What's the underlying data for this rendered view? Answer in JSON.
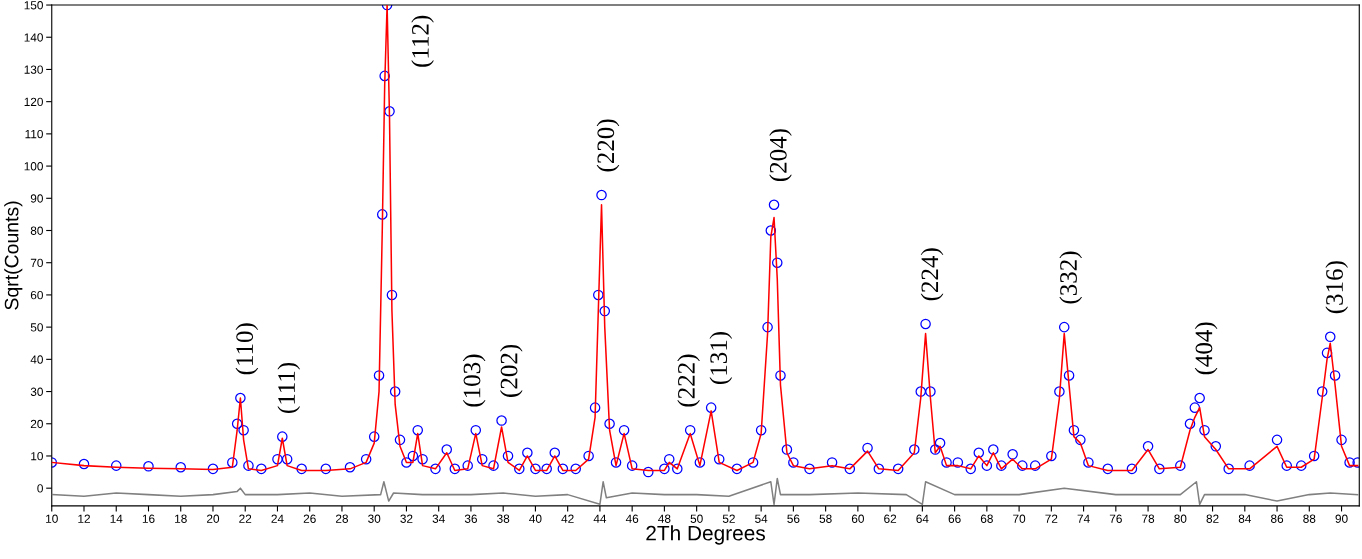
{
  "chart_data": {
    "type": "line",
    "xlabel": "2Th Degrees",
    "ylabel": "Sqrt(Counts)",
    "xlim": [
      10,
      91.1
    ],
    "ylim": [
      -5.5,
      150
    ],
    "xticks": [
      10,
      12,
      14,
      16,
      18,
      20,
      22,
      24,
      26,
      28,
      30,
      32,
      34,
      36,
      38,
      40,
      42,
      44,
      46,
      48,
      50,
      52,
      54,
      56,
      58,
      60,
      62,
      64,
      66,
      68,
      70,
      72,
      74,
      76,
      78,
      80,
      82,
      84,
      86,
      88,
      90
    ],
    "yticks": [
      0,
      10,
      20,
      30,
      40,
      50,
      60,
      70,
      80,
      90,
      100,
      110,
      120,
      130,
      140,
      150
    ],
    "x": [
      10,
      12,
      14,
      16,
      18,
      20,
      21.2,
      21.5,
      21.7,
      21.9,
      22.2,
      23,
      24.0,
      24.3,
      24.6,
      25.5,
      27,
      28.5,
      29.5,
      30.0,
      30.3,
      30.5,
      30.65,
      30.8,
      30.95,
      31.1,
      31.3,
      31.6,
      32.0,
      32.4,
      32.7,
      33.0,
      33.8,
      34.5,
      35.0,
      35.8,
      36.3,
      36.7,
      37.4,
      37.9,
      38.3,
      39.0,
      39.5,
      40.0,
      40.7,
      41.2,
      41.7,
      42.5,
      43.3,
      43.7,
      43.9,
      44.1,
      44.3,
      44.6,
      45.0,
      45.5,
      46.0,
      47.0,
      48.0,
      48.3,
      48.8,
      49.6,
      50.2,
      50.9,
      51.4,
      52.5,
      53.5,
      54.0,
      54.4,
      54.6,
      54.8,
      55.0,
      55.2,
      55.6,
      56.0,
      57.0,
      58.4,
      59.5,
      60.6,
      61.3,
      62.5,
      63.5,
      63.9,
      64.2,
      64.5,
      64.8,
      65.1,
      65.5,
      66.2,
      67.0,
      67.5,
      68.0,
      68.4,
      68.9,
      69.6,
      70.2,
      71.0,
      72.0,
      72.5,
      72.8,
      73.1,
      73.4,
      73.8,
      74.3,
      75.5,
      77.0,
      78.0,
      78.7,
      80.0,
      80.6,
      80.9,
      81.2,
      81.5,
      82.2,
      83.0,
      84.3,
      86.0,
      86.6,
      87.5,
      88.3,
      88.8,
      89.1,
      89.3,
      89.6,
      90.0,
      90.5,
      91.0
    ],
    "series": [
      {
        "type": "scatter",
        "marker": "circle",
        "color": "#0000ff",
        "values": [
          8,
          7.5,
          7,
          6.8,
          6.5,
          6,
          8,
          20,
          28,
          18,
          7,
          6,
          9,
          16,
          9,
          6,
          6,
          6.5,
          9,
          16,
          35,
          85,
          128,
          150,
          117,
          60,
          30,
          15,
          8,
          10,
          18,
          9,
          6,
          12,
          6,
          7,
          18,
          9,
          7,
          21,
          10,
          6,
          11,
          6,
          6,
          11,
          6,
          6,
          10,
          25,
          60,
          91,
          55,
          20,
          8,
          18,
          7,
          5,
          6,
          9,
          6,
          18,
          8,
          25,
          9,
          6,
          8,
          18,
          50,
          80,
          88,
          70,
          35,
          12,
          8,
          6,
          8,
          6,
          12.5,
          6,
          6,
          12,
          30,
          51,
          30,
          12,
          14,
          8,
          8,
          6,
          11,
          7,
          12,
          7,
          10.5,
          7,
          7,
          10,
          30,
          50,
          35,
          18,
          15,
          8,
          6,
          6,
          13,
          6,
          7,
          20,
          25,
          28,
          18,
          13,
          6,
          7,
          15,
          7,
          7,
          10,
          30,
          42,
          47,
          35,
          15,
          8,
          8
        ]
      },
      {
        "line_style": "solid",
        "color": "#ff0000",
        "values": [
          8,
          7,
          6.5,
          6.2,
          6,
          5.8,
          6.5,
          18,
          28,
          15,
          6,
          5.5,
          7,
          15.5,
          7,
          5.5,
          5.5,
          6,
          8,
          14,
          30,
          80,
          125,
          150,
          115,
          55,
          26,
          13,
          8,
          8,
          17,
          7,
          6,
          11,
          5.5,
          6,
          17,
          7,
          6,
          19,
          8,
          5.5,
          10,
          5.5,
          5.5,
          10,
          5.5,
          5.5,
          9,
          22,
          55,
          88,
          50,
          18,
          7,
          17,
          6,
          5.5,
          5.5,
          8,
          6,
          17,
          7,
          24,
          8,
          5.5,
          8,
          17,
          48,
          78,
          84,
          65,
          32,
          11,
          7,
          6,
          7,
          6,
          11.5,
          6,
          5.5,
          11,
          28,
          48,
          28,
          11,
          13,
          7,
          7,
          6,
          10,
          7,
          11,
          6,
          9,
          6,
          6,
          9,
          28,
          48,
          32,
          16,
          14,
          7,
          5.5,
          5.5,
          12,
          6,
          6.5,
          18,
          22,
          25,
          16,
          12,
          6,
          6,
          13,
          6.5,
          6.5,
          9,
          28,
          40,
          45,
          32,
          13,
          7,
          7
        ]
      },
      {
        "type": "line",
        "line_style": "solid",
        "color": "#808080",
        "x": [
          10,
          12,
          14,
          16,
          18,
          20,
          21.5,
          21.7,
          22,
          24,
          26,
          28,
          30.4,
          30.6,
          30.9,
          31.2,
          33,
          36,
          38,
          40,
          42,
          44.0,
          44.2,
          44.4,
          46,
          48,
          50,
          52,
          54.6,
          54.8,
          55.0,
          55.2,
          57,
          60,
          63,
          64.0,
          64.2,
          66,
          70,
          72.8,
          76,
          80,
          81.0,
          81.2,
          81.5,
          84,
          86.0,
          88,
          89.3,
          91
        ],
        "values": [
          -2,
          -2.5,
          -1.5,
          -2,
          -2.5,
          -2,
          -1,
          0,
          -2,
          -2,
          -1.5,
          -2.5,
          -2,
          2,
          -4,
          -1.5,
          -2,
          -2,
          -1.5,
          -2.5,
          -2,
          -5,
          2,
          -3,
          -1.5,
          -2,
          -2,
          -2.5,
          2,
          -5,
          3,
          -2,
          -2,
          -1.5,
          -2,
          -5,
          2,
          -2,
          -2,
          0,
          -2,
          -2,
          2,
          -5,
          -2,
          -2,
          -4,
          -2,
          -1.5,
          -2
        ]
      }
    ],
    "annotations": [
      {
        "text": "(110)",
        "x": 21.7,
        "y": 28
      },
      {
        "text": "(111)",
        "x": 24.3,
        "y": 16
      },
      {
        "text": "(112)",
        "x": 30.8,
        "y": 150
      },
      {
        "text": "(103)",
        "x": 36.3,
        "y": 18
      },
      {
        "text": "(202)",
        "x": 37.9,
        "y": 21
      },
      {
        "text": "(220)",
        "x": 44.1,
        "y": 91
      },
      {
        "text": "(222)",
        "x": 49.6,
        "y": 18
      },
      {
        "text": "(131)",
        "x": 50.9,
        "y": 25
      },
      {
        "text": "(204)",
        "x": 54.8,
        "y": 88
      },
      {
        "text": "(224)",
        "x": 64.2,
        "y": 51
      },
      {
        "text": "(332)",
        "x": 72.8,
        "y": 50
      },
      {
        "text": "(404)",
        "x": 81.2,
        "y": 28
      },
      {
        "text": "(316)",
        "x": 89.3,
        "y": 47
      }
    ]
  }
}
